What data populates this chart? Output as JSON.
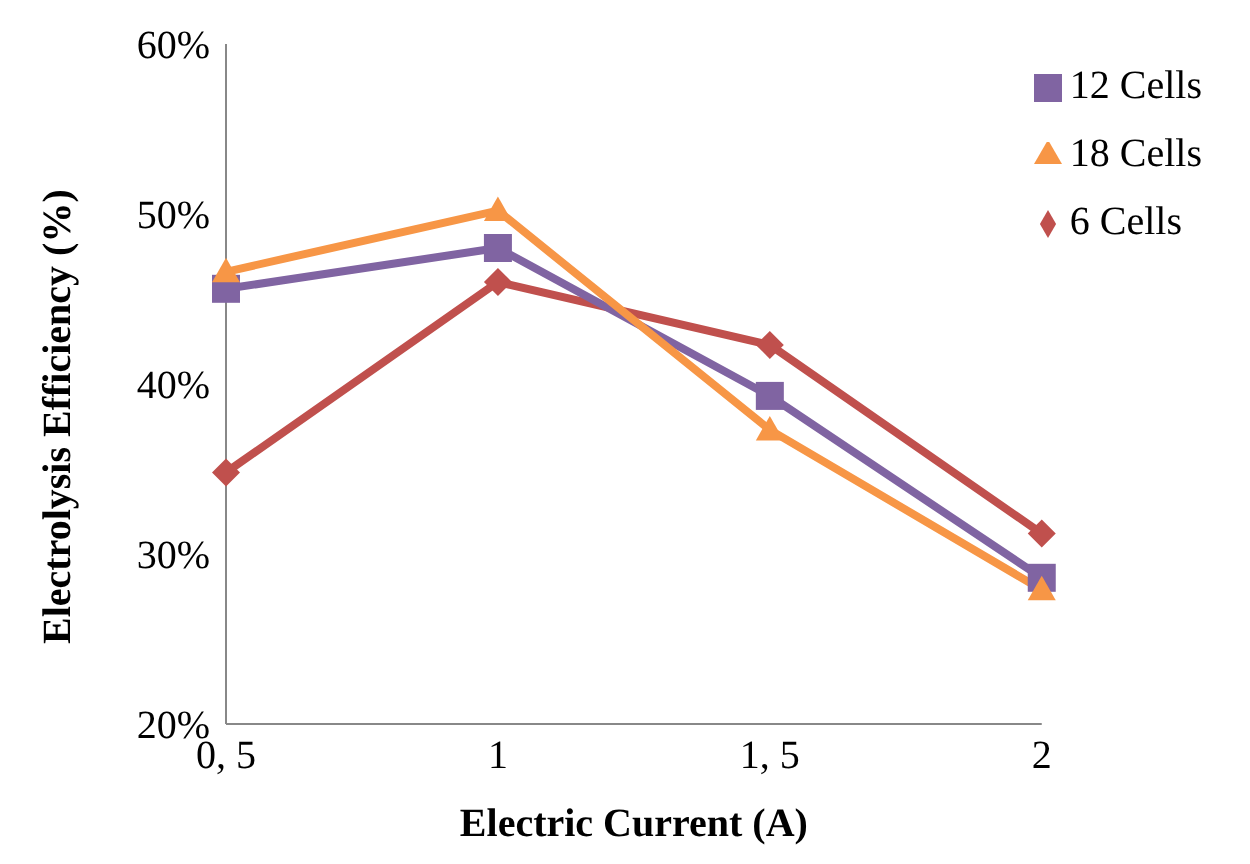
{
  "chart_data": {
    "type": "line",
    "xlabel": "Electric Current (A)",
    "ylabel": "Electrolysis Efficiency (%)",
    "categories": [
      "0, 5",
      "1",
      "1, 5",
      "2"
    ],
    "series": [
      {
        "name": "6 Cells",
        "color": "#c0504d",
        "marker": "diamond",
        "values": [
          34.8,
          46.0,
          42.3,
          31.2
        ]
      },
      {
        "name": "12 Cells",
        "color": "#8064a2",
        "marker": "square",
        "values": [
          45.6,
          48.0,
          39.3,
          28.6
        ]
      },
      {
        "name": "18 Cells",
        "color": "#f79646",
        "marker": "triangle",
        "values": [
          46.6,
          50.2,
          37.3,
          27.9
        ]
      }
    ],
    "ylim": [
      20,
      60
    ],
    "yticks": [
      {
        "value": 20,
        "label": "20%"
      },
      {
        "value": 30,
        "label": "30%"
      },
      {
        "value": 40,
        "label": "40%"
      },
      {
        "value": 50,
        "label": "50%"
      },
      {
        "value": 60,
        "label": "60%"
      }
    ],
    "grid": false,
    "legend": "top right",
    "line_style": "solid"
  }
}
